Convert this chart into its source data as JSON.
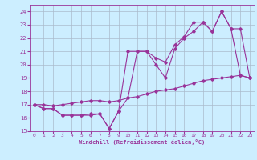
{
  "xlabel": "Windchill (Refroidissement éolien,°C)",
  "background_color": "#cceeff",
  "grid_color": "#aabbcc",
  "line_color": "#993399",
  "xlim": [
    -0.5,
    23.5
  ],
  "ylim": [
    15,
    24.5
  ],
  "xticks": [
    0,
    1,
    2,
    3,
    4,
    5,
    6,
    7,
    8,
    9,
    10,
    11,
    12,
    13,
    14,
    15,
    16,
    17,
    18,
    19,
    20,
    21,
    22,
    23
  ],
  "yticks": [
    15,
    16,
    17,
    18,
    19,
    20,
    21,
    22,
    23,
    24
  ],
  "line1_x": [
    0,
    1,
    2,
    3,
    4,
    5,
    6,
    7,
    8,
    9,
    10,
    11,
    12,
    13,
    14,
    15,
    16,
    17,
    18,
    19,
    20,
    21,
    22,
    23
  ],
  "line1_y": [
    17.0,
    16.7,
    16.7,
    16.2,
    16.2,
    16.2,
    16.2,
    16.3,
    15.2,
    16.5,
    17.5,
    21.0,
    21.0,
    20.0,
    19.0,
    21.2,
    22.0,
    22.5,
    23.2,
    22.5,
    24.0,
    22.7,
    19.2,
    19.0
  ],
  "line2_x": [
    0,
    1,
    2,
    3,
    4,
    5,
    6,
    7,
    8,
    9,
    10,
    11,
    12,
    13,
    14,
    15,
    16,
    17,
    18,
    19,
    20,
    21,
    22,
    23
  ],
  "line2_y": [
    17.0,
    16.7,
    16.7,
    16.2,
    16.2,
    16.2,
    16.3,
    16.3,
    15.2,
    16.5,
    21.0,
    21.0,
    21.0,
    20.5,
    20.2,
    21.5,
    22.1,
    23.2,
    23.2,
    22.5,
    24.0,
    22.7,
    22.7,
    19.0
  ],
  "line3_x": [
    0,
    1,
    2,
    3,
    4,
    5,
    6,
    7,
    8,
    9,
    10,
    11,
    12,
    13,
    14,
    15,
    16,
    17,
    18,
    19,
    20,
    21,
    22,
    23
  ],
  "line3_y": [
    17.0,
    17.0,
    16.9,
    17.0,
    17.1,
    17.2,
    17.3,
    17.3,
    17.2,
    17.3,
    17.5,
    17.6,
    17.8,
    18.0,
    18.1,
    18.2,
    18.4,
    18.6,
    18.8,
    18.9,
    19.0,
    19.1,
    19.2,
    19.0
  ]
}
